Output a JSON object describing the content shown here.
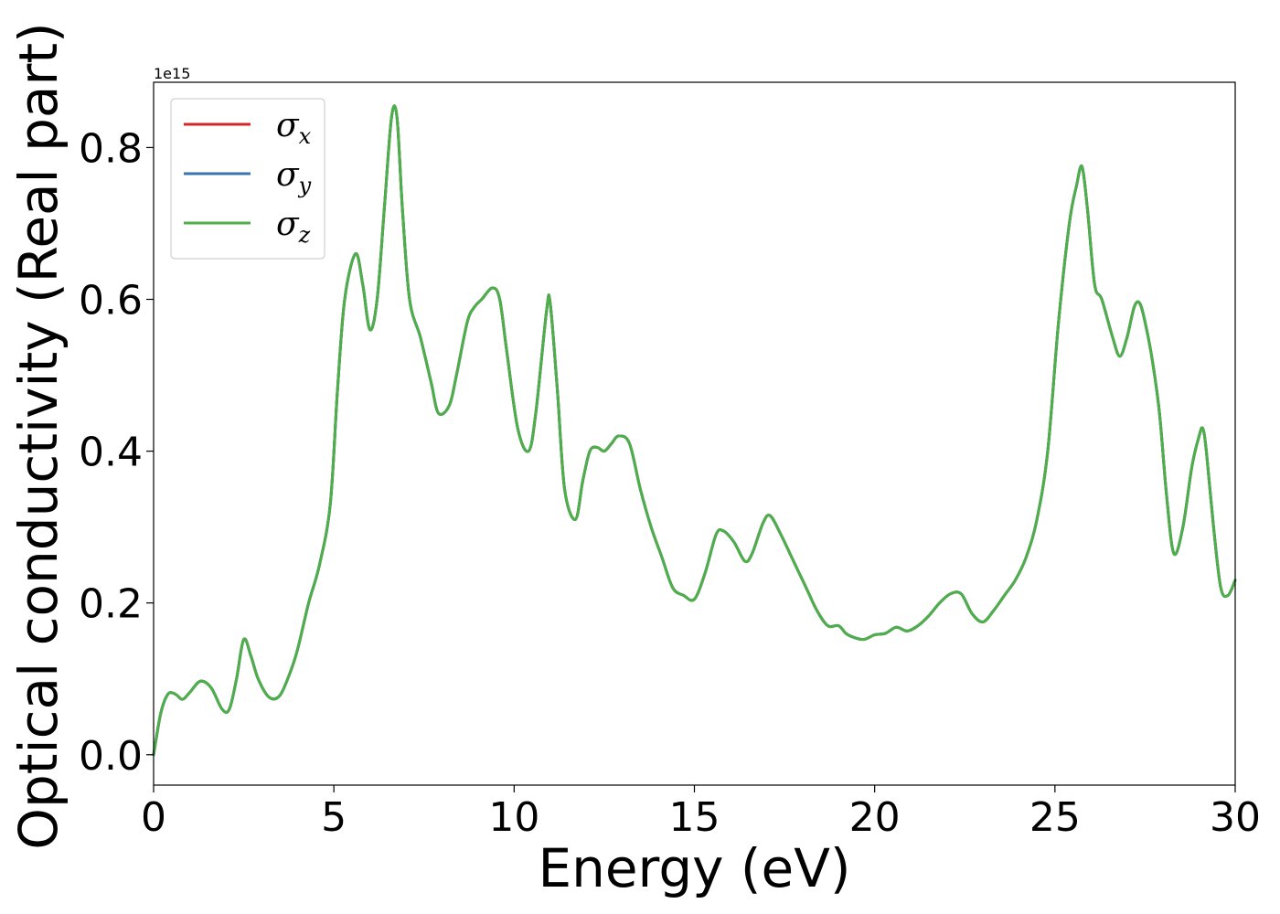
{
  "chart_data": {
    "type": "line",
    "xlabel": "Energy (eV)",
    "ylabel": "Optical conductivity (Real part)",
    "y_scale_label": "1e15",
    "xlim": [
      0,
      30
    ],
    "ylim": [
      -0.04,
      0.886
    ],
    "xticks": [
      0,
      5,
      10,
      15,
      20,
      25,
      30
    ],
    "xtick_labels": [
      "0",
      "5",
      "10",
      "15",
      "20",
      "25",
      "30"
    ],
    "yticks": [
      0.0,
      0.2,
      0.4,
      0.6,
      0.8
    ],
    "ytick_labels": [
      "0.0",
      "0.2",
      "0.4",
      "0.6",
      "0.8"
    ],
    "grid": false,
    "legend_position": "top-left",
    "x": [
      0,
      0.2,
      0.4,
      0.6,
      0.8,
      1.0,
      1.3,
      1.6,
      1.9,
      2.1,
      2.3,
      2.5,
      2.7,
      2.9,
      3.2,
      3.5,
      3.8,
      4.0,
      4.3,
      4.6,
      4.9,
      5.1,
      5.3,
      5.6,
      5.8,
      6.0,
      6.2,
      6.4,
      6.6,
      6.75,
      6.9,
      7.1,
      7.4,
      7.7,
      7.9,
      8.2,
      8.4,
      8.7,
      8.9,
      9.1,
      9.4,
      9.6,
      9.8,
      10.1,
      10.4,
      10.6,
      10.9,
      11.0,
      11.2,
      11.4,
      11.7,
      11.9,
      12.1,
      12.3,
      12.5,
      12.7,
      12.9,
      13.2,
      13.5,
      13.8,
      14.1,
      14.4,
      14.7,
      15.0,
      15.3,
      15.6,
      15.8,
      16.1,
      16.4,
      16.6,
      16.9,
      17.1,
      17.4,
      17.7,
      18.1,
      18.4,
      18.7,
      19.0,
      19.2,
      19.4,
      19.7,
      20.0,
      20.3,
      20.6,
      20.9,
      21.2,
      21.5,
      21.8,
      22.1,
      22.4,
      22.7,
      23.0,
      23.3,
      23.6,
      23.9,
      24.2,
      24.5,
      24.8,
      25.1,
      25.4,
      25.6,
      25.75,
      25.9,
      26.1,
      26.3,
      26.6,
      26.8,
      27.0,
      27.2,
      27.35,
      27.5,
      27.7,
      27.9,
      28.1,
      28.3,
      28.55,
      28.8,
      29.0,
      29.1,
      29.2,
      29.4,
      29.6,
      29.8,
      30.0
    ],
    "series": [
      {
        "name": "σx",
        "color": "#d62728",
        "values": [
          0.0,
          0.055,
          0.08,
          0.08,
          0.073,
          0.082,
          0.097,
          0.088,
          0.06,
          0.06,
          0.1,
          0.152,
          0.13,
          0.1,
          0.076,
          0.078,
          0.11,
          0.14,
          0.2,
          0.25,
          0.33,
          0.48,
          0.6,
          0.66,
          0.62,
          0.56,
          0.6,
          0.72,
          0.84,
          0.84,
          0.72,
          0.6,
          0.55,
          0.49,
          0.45,
          0.46,
          0.5,
          0.57,
          0.59,
          0.6,
          0.615,
          0.6,
          0.53,
          0.43,
          0.4,
          0.45,
          0.585,
          0.595,
          0.48,
          0.35,
          0.31,
          0.36,
          0.4,
          0.405,
          0.4,
          0.41,
          0.42,
          0.41,
          0.35,
          0.3,
          0.26,
          0.22,
          0.21,
          0.205,
          0.24,
          0.29,
          0.295,
          0.28,
          0.255,
          0.265,
          0.305,
          0.315,
          0.29,
          0.26,
          0.22,
          0.19,
          0.17,
          0.17,
          0.16,
          0.155,
          0.152,
          0.158,
          0.16,
          0.168,
          0.163,
          0.17,
          0.183,
          0.2,
          0.212,
          0.212,
          0.186,
          0.175,
          0.19,
          0.21,
          0.23,
          0.26,
          0.31,
          0.4,
          0.57,
          0.7,
          0.75,
          0.775,
          0.72,
          0.62,
          0.6,
          0.55,
          0.525,
          0.55,
          0.59,
          0.595,
          0.57,
          0.52,
          0.45,
          0.34,
          0.265,
          0.3,
          0.38,
          0.42,
          0.43,
          0.4,
          0.3,
          0.22,
          0.21,
          0.23
        ]
      },
      {
        "name": "σy",
        "color": "#3b75af",
        "values": [
          0.0,
          0.055,
          0.08,
          0.08,
          0.073,
          0.082,
          0.097,
          0.088,
          0.06,
          0.06,
          0.1,
          0.152,
          0.13,
          0.1,
          0.076,
          0.078,
          0.11,
          0.14,
          0.2,
          0.25,
          0.33,
          0.48,
          0.6,
          0.66,
          0.62,
          0.56,
          0.6,
          0.72,
          0.84,
          0.84,
          0.72,
          0.6,
          0.55,
          0.49,
          0.45,
          0.46,
          0.5,
          0.57,
          0.59,
          0.6,
          0.615,
          0.6,
          0.53,
          0.43,
          0.4,
          0.45,
          0.585,
          0.595,
          0.48,
          0.35,
          0.31,
          0.36,
          0.4,
          0.405,
          0.4,
          0.41,
          0.42,
          0.41,
          0.35,
          0.3,
          0.26,
          0.22,
          0.21,
          0.205,
          0.24,
          0.29,
          0.295,
          0.28,
          0.255,
          0.265,
          0.305,
          0.315,
          0.29,
          0.26,
          0.22,
          0.19,
          0.17,
          0.17,
          0.16,
          0.155,
          0.152,
          0.158,
          0.16,
          0.168,
          0.163,
          0.17,
          0.183,
          0.2,
          0.212,
          0.212,
          0.186,
          0.175,
          0.19,
          0.21,
          0.23,
          0.26,
          0.31,
          0.4,
          0.57,
          0.7,
          0.75,
          0.775,
          0.72,
          0.62,
          0.6,
          0.55,
          0.525,
          0.55,
          0.59,
          0.595,
          0.57,
          0.52,
          0.45,
          0.34,
          0.265,
          0.3,
          0.38,
          0.42,
          0.43,
          0.4,
          0.3,
          0.22,
          0.21,
          0.23
        ]
      },
      {
        "name": "σz",
        "color": "#4daf4a",
        "values": [
          0.0,
          0.055,
          0.08,
          0.08,
          0.073,
          0.082,
          0.097,
          0.088,
          0.06,
          0.06,
          0.1,
          0.152,
          0.13,
          0.1,
          0.076,
          0.078,
          0.11,
          0.14,
          0.2,
          0.25,
          0.33,
          0.48,
          0.6,
          0.66,
          0.62,
          0.56,
          0.6,
          0.72,
          0.84,
          0.84,
          0.72,
          0.6,
          0.55,
          0.49,
          0.45,
          0.46,
          0.5,
          0.57,
          0.59,
          0.6,
          0.615,
          0.6,
          0.53,
          0.43,
          0.4,
          0.45,
          0.585,
          0.595,
          0.48,
          0.35,
          0.31,
          0.36,
          0.4,
          0.405,
          0.4,
          0.41,
          0.42,
          0.41,
          0.35,
          0.3,
          0.26,
          0.22,
          0.21,
          0.205,
          0.24,
          0.29,
          0.295,
          0.28,
          0.255,
          0.265,
          0.305,
          0.315,
          0.29,
          0.26,
          0.22,
          0.19,
          0.17,
          0.17,
          0.16,
          0.155,
          0.152,
          0.158,
          0.16,
          0.168,
          0.163,
          0.17,
          0.183,
          0.2,
          0.212,
          0.212,
          0.186,
          0.175,
          0.19,
          0.21,
          0.23,
          0.26,
          0.31,
          0.4,
          0.57,
          0.7,
          0.75,
          0.775,
          0.72,
          0.62,
          0.6,
          0.55,
          0.525,
          0.55,
          0.59,
          0.595,
          0.57,
          0.52,
          0.45,
          0.34,
          0.265,
          0.3,
          0.38,
          0.42,
          0.43,
          0.4,
          0.3,
          0.22,
          0.21,
          0.23
        ]
      }
    ],
    "legend": [
      {
        "symbol": "σ",
        "subscript": "x",
        "color": "#d62728"
      },
      {
        "symbol": "σ",
        "subscript": "y",
        "color": "#3b75af"
      },
      {
        "symbol": "σ",
        "subscript": "z",
        "color": "#4daf4a"
      }
    ]
  }
}
